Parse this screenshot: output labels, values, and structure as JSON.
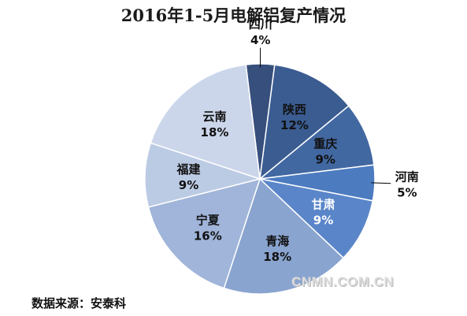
{
  "chart_data": {
    "type": "pie",
    "title": "2016年1-5月电解铝复产情况",
    "categories": [
      "四川",
      "陕西",
      "重庆",
      "河南",
      "甘肃",
      "青海",
      "宁夏",
      "福建",
      "云南"
    ],
    "values": [
      4,
      12,
      9,
      5,
      9,
      18,
      16,
      9,
      18
    ],
    "value_labels": [
      "4%",
      "12%",
      "9%",
      "5%",
      "9%",
      "18%",
      "16%",
      "9%",
      "18%"
    ],
    "colors": [
      "#374f7c",
      "#3a5c91",
      "#4268a2",
      "#4c7bc0",
      "#5a86c9",
      "#8aa4d0",
      "#a0b5d9",
      "#bccbe4",
      "#cbd6ea"
    ],
    "label_colors": [
      "#111111",
      "#111111",
      "#111111",
      "#111111",
      "#ffffff",
      "#111111",
      "#111111",
      "#111111",
      "#111111"
    ],
    "label_inside": [
      false,
      true,
      true,
      false,
      true,
      true,
      true,
      true,
      true
    ],
    "grid": false,
    "legend": "none"
  },
  "footer": {
    "source": "数据来源：安泰科",
    "watermark": "CNMN.COM.CN"
  }
}
